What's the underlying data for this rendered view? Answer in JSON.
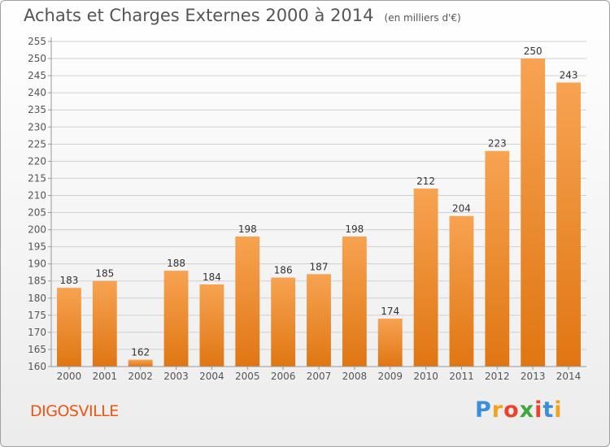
{
  "title": "Achats et Charges Externes 2000 à 2014",
  "unit": "(en milliers d'€)",
  "city": "DIGOSVILLE",
  "brand": {
    "letters": [
      "P",
      "r",
      "o",
      "x",
      "i",
      "t",
      "i"
    ],
    "colors": [
      "#3a8fd8",
      "#f2a31b",
      "#e8452c",
      "#3ea83a",
      "#e8452c",
      "#3a8fd8",
      "#f2a31b"
    ]
  },
  "colors": {
    "bar_top": "#f7a352",
    "bar_bottom": "#e07612",
    "grid": "#d0d0d0",
    "text": "#555555",
    "city": "#ee5511"
  },
  "chart_data": {
    "type": "bar",
    "categories": [
      "2000",
      "2001",
      "2002",
      "2003",
      "2004",
      "2005",
      "2006",
      "2007",
      "2008",
      "2009",
      "2010",
      "2011",
      "2012",
      "2013",
      "2014"
    ],
    "values": [
      183,
      185,
      162,
      188,
      184,
      198,
      186,
      187,
      198,
      174,
      212,
      204,
      223,
      250,
      243
    ],
    "yticks": [
      160,
      165,
      170,
      175,
      180,
      185,
      190,
      195,
      200,
      205,
      210,
      215,
      220,
      225,
      230,
      235,
      240,
      245,
      250,
      255
    ],
    "ylim": [
      160,
      255
    ],
    "grid": true,
    "legend": "none"
  }
}
